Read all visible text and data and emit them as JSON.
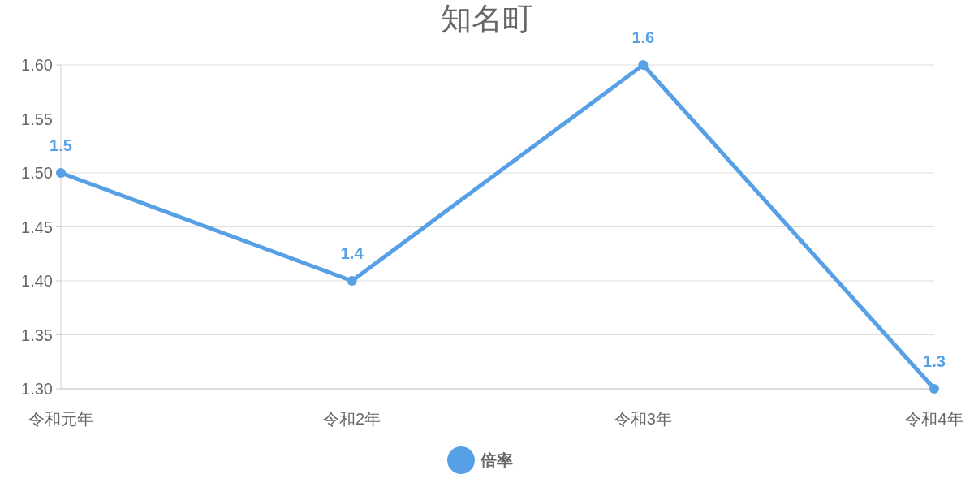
{
  "chart_data": {
    "type": "line",
    "title": "知名町",
    "categories": [
      "令和元年",
      "令和2年",
      "令和3年",
      "令和4年"
    ],
    "series": [
      {
        "name": "倍率",
        "color": "#58a0e6",
        "values": [
          1.5,
          1.4,
          1.6,
          1.3
        ]
      }
    ],
    "ylim": [
      1.3,
      1.6
    ],
    "yticks": [
      {
        "value": 1.3,
        "label": "1.30"
      },
      {
        "value": 1.35,
        "label": "1.35"
      },
      {
        "value": 1.4,
        "label": "1.40"
      },
      {
        "value": 1.45,
        "label": "1.45"
      },
      {
        "value": 1.5,
        "label": "1.50"
      },
      {
        "value": 1.55,
        "label": "1.55"
      },
      {
        "value": 1.6,
        "label": "1.60"
      }
    ],
    "grid": "y",
    "legend": "bottom",
    "marker": "circle",
    "line_style": "solid",
    "data_labels": true
  }
}
